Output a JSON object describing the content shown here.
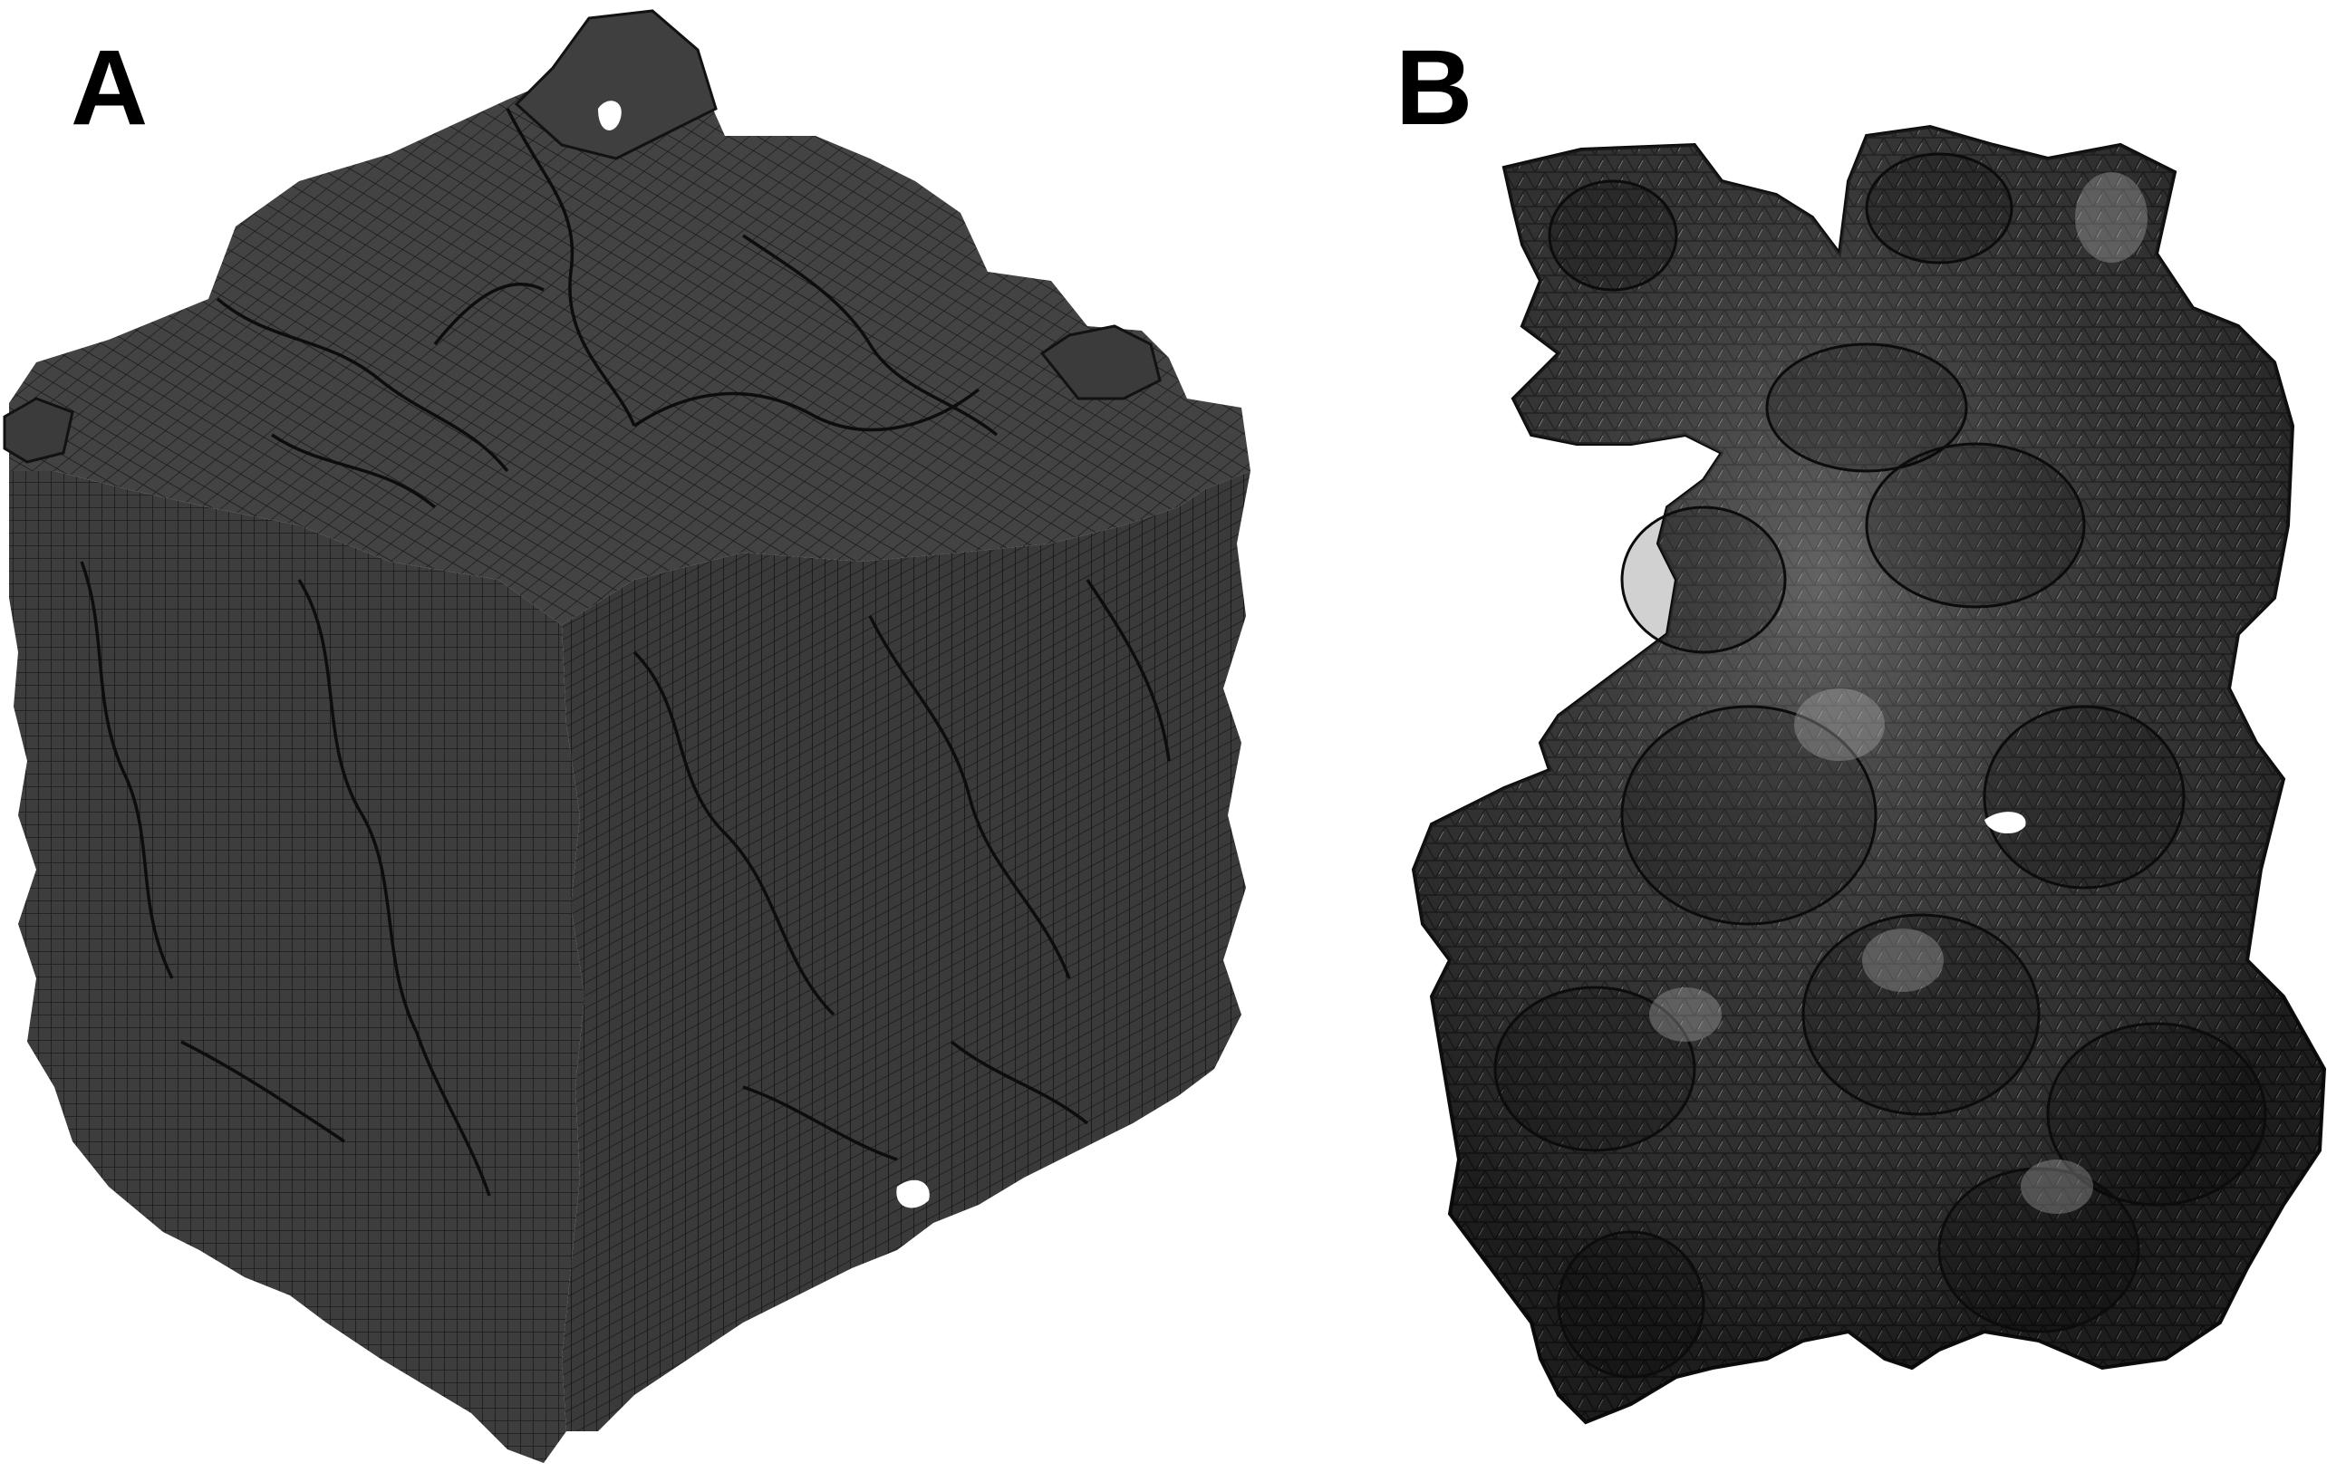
{
  "figure": {
    "panels": [
      {
        "label": "A"
      },
      {
        "label": "B"
      }
    ],
    "colors": {
      "background": "#ffffff",
      "mesh_fill_a": "#3d3d3d",
      "mesh_line": "#111111",
      "mesh_fill_b": "#2e2e2e",
      "highlight_b": "#9a9a9a"
    }
  }
}
